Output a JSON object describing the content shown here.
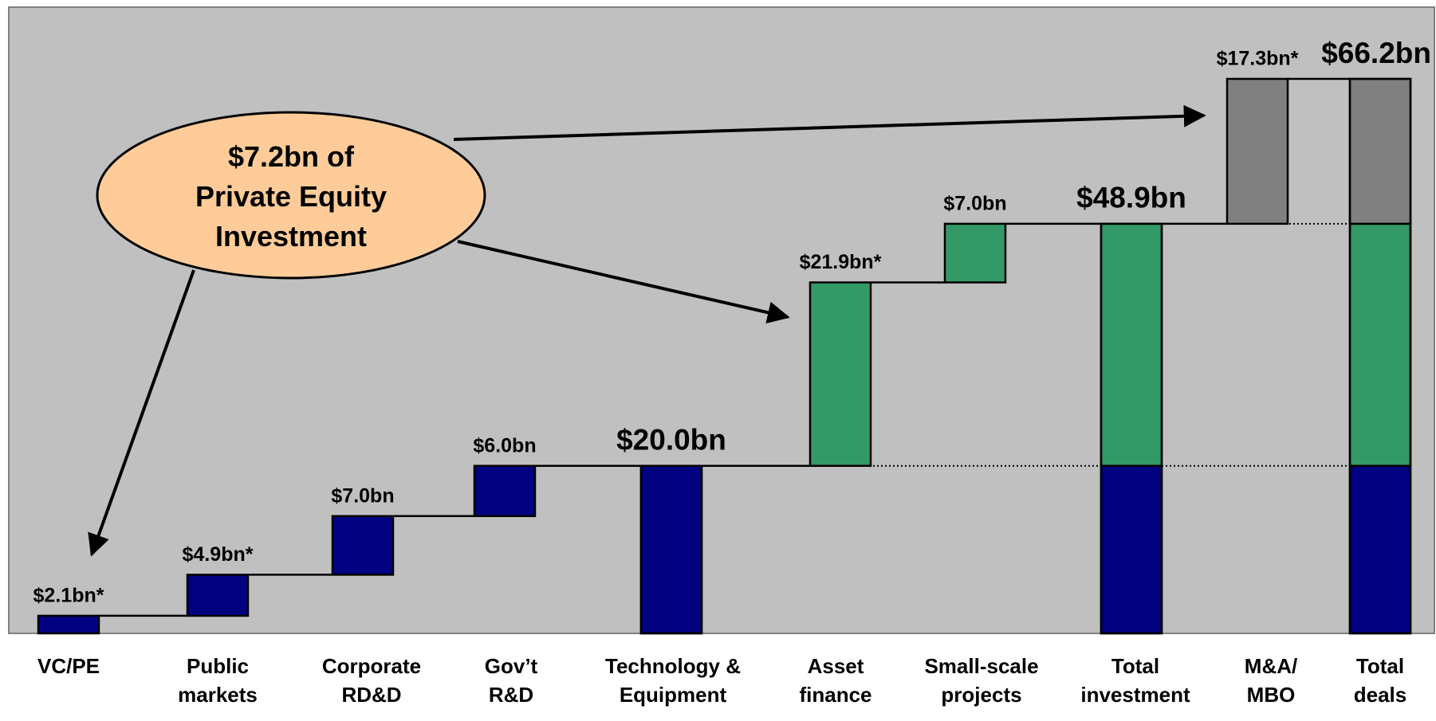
{
  "chart_data": {
    "type": "waterfall",
    "categories": [
      "VC/PE",
      "Public\nmarkets",
      "Corporate\nRD&D",
      "Gov’t\nR&D",
      "Technology &\nEquipment",
      "Asset\nfinance",
      "Small-scale\nprojects",
      "Total\ninvestment",
      "M&A/\nMBO",
      "Total\ndeals"
    ],
    "values": [
      2.1,
      4.9,
      7.0,
      6.0,
      20.0,
      21.9,
      7.0,
      48.9,
      17.3,
      66.2
    ],
    "value_labels": [
      "$2.1bn*",
      "$4.9bn*",
      "$7.0bn",
      "$6.0bn",
      "$20.0bn",
      "$21.9bn*",
      "$7.0bn",
      "$48.9bn",
      "$17.3bn*",
      "$66.2bn"
    ],
    "is_total": [
      false,
      false,
      false,
      false,
      true,
      false,
      false,
      true,
      false,
      true
    ],
    "colors": [
      "#000080",
      "#000080",
      "#000080",
      "#000080",
      null,
      "#339966",
      "#339966",
      null,
      "#808080",
      null
    ],
    "annotation": "$7.2bn of\nPrivate Equity\nInvestment"
  }
}
